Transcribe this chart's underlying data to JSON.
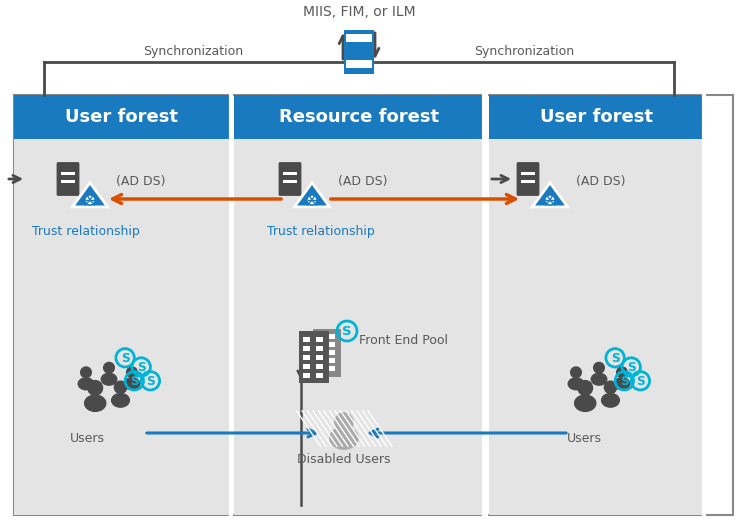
{
  "bg_color": "#ffffff",
  "panel_bg": "#e4e4e4",
  "header_blue": "#1a7abf",
  "server_blue": "#1a7abf",
  "dark_gray": "#4a4a4a",
  "orange_red": "#d94f00",
  "bright_blue": "#1a7abf",
  "arrow_blue": "#1a7abf",
  "sync_arrow_color": "#4a4a4a",
  "text_gray": "#595959",
  "title": "MIIS, FIM, or ILM",
  "label_sync_left": "Synchronization",
  "label_sync_right": "Synchronization",
  "label_user_forest": "User forest",
  "label_resource_forest": "Resource forest",
  "label_ad_ds": "(AD DS)",
  "label_trust": "Trust relationship",
  "label_front_end": "Front End Pool",
  "label_disabled": "Disabled Users",
  "label_users": "Users",
  "skype_cyan": "#00b4d8",
  "white": "#ffffff"
}
